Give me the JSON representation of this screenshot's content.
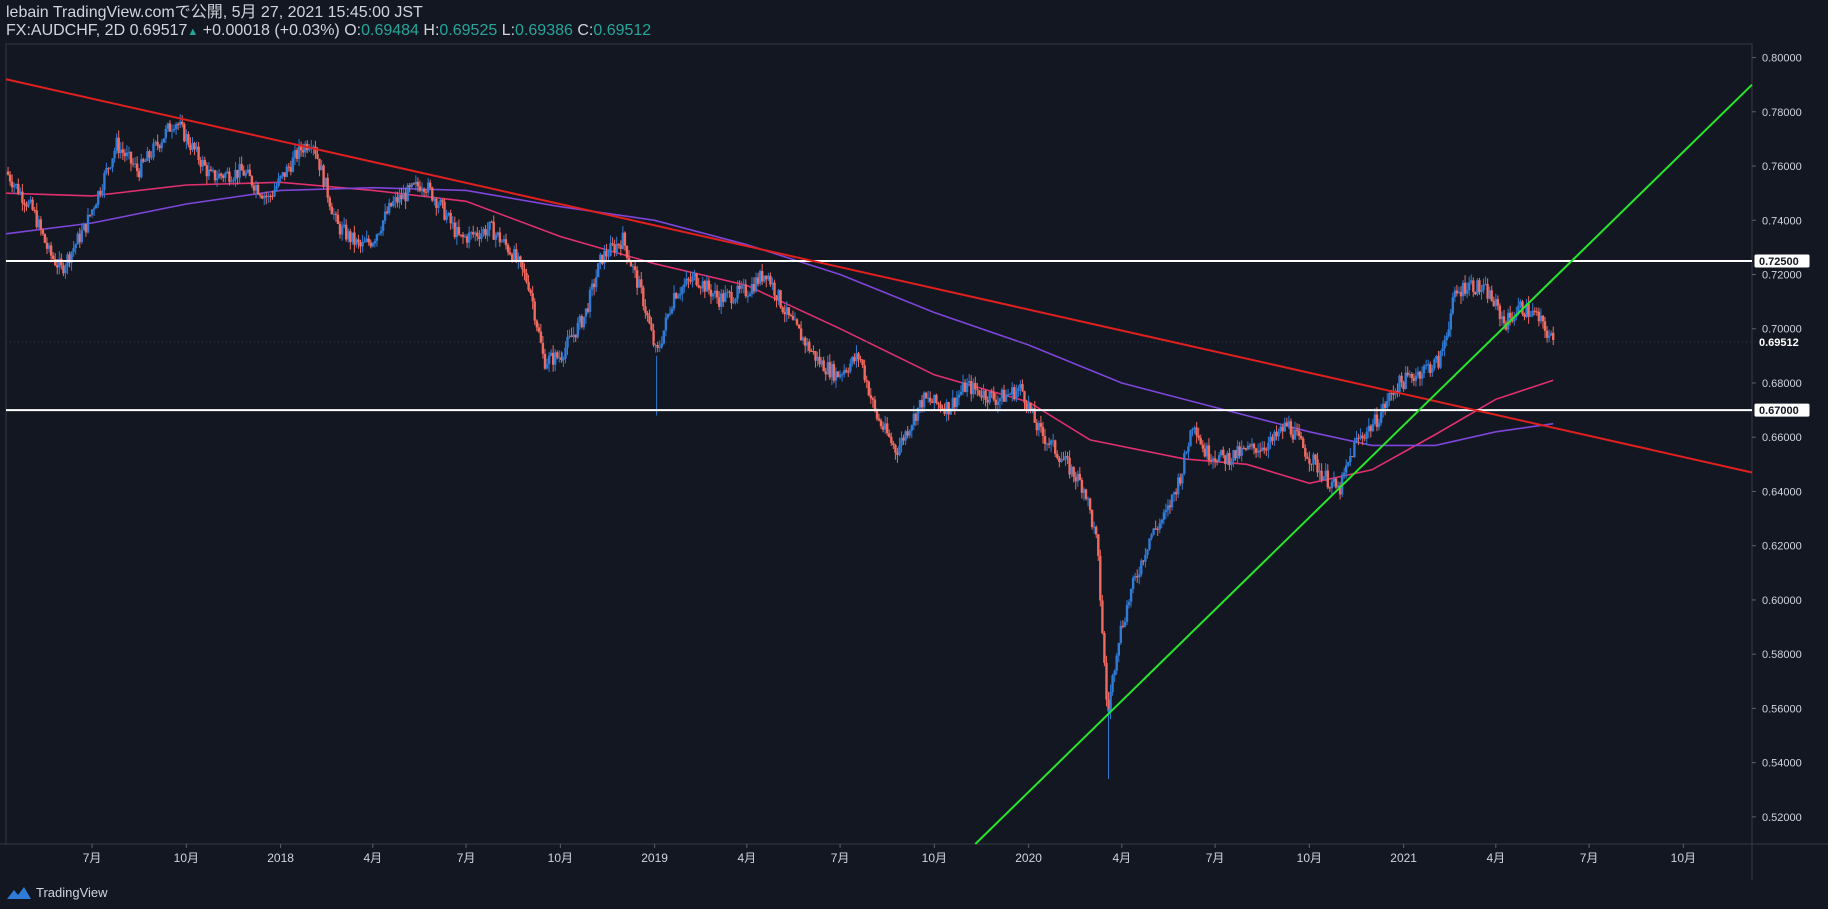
{
  "header": {
    "publisher": "lebain TradingView.comで公開, 5月 27, 2021 15:45:00 JST",
    "symbol": "FX:AUDCHF, 2D",
    "last": "0.69517",
    "change": "+0.00018 (+0.03%)",
    "o_label": "O:",
    "o_value": "0.69484",
    "h_label": "H:",
    "h_value": "0.69525",
    "l_label": "L:",
    "l_value": "0.69386",
    "c_label": "C:",
    "c_value": "0.69512"
  },
  "footer": {
    "brand": "TradingView",
    "logo_icon": "tradingview-logo-icon"
  },
  "colors": {
    "background": "#131722",
    "up": "#2f7bd6",
    "down": "#ef6a5f",
    "trend_down": "#e0201f",
    "trend_up": "#27e52b",
    "ma_fast": "#e0306e",
    "ma_slow": "#7d45d8",
    "level": "#ffffff",
    "text": "#d1d4dc",
    "value": "#26a69a"
  },
  "chart_data": {
    "type": "candlestick",
    "ylim": [
      0.51,
      0.805
    ],
    "yticks": [
      "0.80000",
      "0.78000",
      "0.76000",
      "0.74000",
      "0.72000",
      "0.70000",
      "0.68000",
      "0.66000",
      "0.64000",
      "0.62000",
      "0.60000",
      "0.58000",
      "0.56000",
      "0.54000",
      "0.52000"
    ],
    "xlim": [
      "2017-04-08",
      "2021-12-07"
    ],
    "xticks": [
      {
        "label": "7月",
        "date": "2017-07-01"
      },
      {
        "label": "10月",
        "date": "2017-10-01"
      },
      {
        "label": "2018",
        "date": "2018-01-01"
      },
      {
        "label": "4月",
        "date": "2018-04-01"
      },
      {
        "label": "7月",
        "date": "2018-07-01"
      },
      {
        "label": "10月",
        "date": "2018-10-01"
      },
      {
        "label": "2019",
        "date": "2019-01-01"
      },
      {
        "label": "4月",
        "date": "2019-04-01"
      },
      {
        "label": "7月",
        "date": "2019-07-01"
      },
      {
        "label": "10月",
        "date": "2019-10-01"
      },
      {
        "label": "2020",
        "date": "2020-01-01"
      },
      {
        "label": "4月",
        "date": "2020-04-01"
      },
      {
        "label": "7月",
        "date": "2020-07-01"
      },
      {
        "label": "10月",
        "date": "2020-10-01"
      },
      {
        "label": "2021",
        "date": "2021-01-01"
      },
      {
        "label": "4月",
        "date": "2021-04-01"
      },
      {
        "label": "7月",
        "date": "2021-07-01"
      },
      {
        "label": "10月",
        "date": "2021-10-01"
      }
    ],
    "price_path": [
      [
        "2017-04-08",
        0.758
      ],
      [
        "2017-05-05",
        0.743
      ],
      [
        "2017-05-20",
        0.728
      ],
      [
        "2017-06-01",
        0.722
      ],
      [
        "2017-06-25",
        0.738
      ],
      [
        "2017-07-25",
        0.768
      ],
      [
        "2017-08-15",
        0.758
      ],
      [
        "2017-09-20",
        0.777
      ],
      [
        "2017-10-25",
        0.756
      ],
      [
        "2017-11-25",
        0.758
      ],
      [
        "2017-12-20",
        0.748
      ],
      [
        "2018-01-20",
        0.766
      ],
      [
        "2018-02-01",
        0.77
      ],
      [
        "2018-02-25",
        0.738
      ],
      [
        "2018-03-20",
        0.73
      ],
      [
        "2018-04-01",
        0.733
      ],
      [
        "2018-04-20",
        0.746
      ],
      [
        "2018-05-20",
        0.754
      ],
      [
        "2018-06-05",
        0.746
      ],
      [
        "2018-06-25",
        0.733
      ],
      [
        "2018-07-25",
        0.737
      ],
      [
        "2018-08-15",
        0.728
      ],
      [
        "2018-09-01",
        0.716
      ],
      [
        "2018-09-15",
        0.688
      ],
      [
        "2018-10-01",
        0.69
      ],
      [
        "2018-10-25",
        0.705
      ],
      [
        "2018-11-10",
        0.726
      ],
      [
        "2018-12-01",
        0.733
      ],
      [
        "2018-12-20",
        0.712
      ],
      [
        "2019-01-03",
        0.69
      ],
      [
        "2019-01-20",
        0.713
      ],
      [
        "2019-02-10",
        0.719
      ],
      [
        "2019-03-05",
        0.711
      ],
      [
        "2019-04-01",
        0.714
      ],
      [
        "2019-04-20",
        0.721
      ],
      [
        "2019-05-10",
        0.705
      ],
      [
        "2019-06-10",
        0.688
      ],
      [
        "2019-06-28",
        0.683
      ],
      [
        "2019-07-20",
        0.69
      ],
      [
        "2019-08-05",
        0.668
      ],
      [
        "2019-08-25",
        0.655
      ],
      [
        "2019-09-20",
        0.674
      ],
      [
        "2019-10-15",
        0.671
      ],
      [
        "2019-11-01",
        0.679
      ],
      [
        "2019-12-01",
        0.674
      ],
      [
        "2019-12-25",
        0.678
      ],
      [
        "2020-01-10",
        0.663
      ],
      [
        "2020-02-01",
        0.653
      ],
      [
        "2020-02-25",
        0.641
      ],
      [
        "2020-03-08",
        0.62
      ],
      [
        "2020-03-18",
        0.557
      ],
      [
        "2020-03-28",
        0.585
      ],
      [
        "2020-04-10",
        0.603
      ],
      [
        "2020-04-28",
        0.623
      ],
      [
        "2020-05-15",
        0.632
      ],
      [
        "2020-05-30",
        0.648
      ],
      [
        "2020-06-10",
        0.667
      ],
      [
        "2020-06-20",
        0.655
      ],
      [
        "2020-07-10",
        0.652
      ],
      [
        "2020-08-01",
        0.655
      ],
      [
        "2020-08-25",
        0.658
      ],
      [
        "2020-09-10",
        0.665
      ],
      [
        "2020-09-25",
        0.656
      ],
      [
        "2020-10-15",
        0.646
      ],
      [
        "2020-10-30",
        0.64
      ],
      [
        "2020-11-15",
        0.658
      ],
      [
        "2020-12-05",
        0.666
      ],
      [
        "2020-12-25",
        0.679
      ],
      [
        "2021-01-20",
        0.685
      ],
      [
        "2021-02-05",
        0.688
      ],
      [
        "2021-02-20",
        0.712
      ],
      [
        "2021-03-05",
        0.717
      ],
      [
        "2021-03-25",
        0.713
      ],
      [
        "2021-04-10",
        0.702
      ],
      [
        "2021-04-25",
        0.708
      ],
      [
        "2021-05-10",
        0.705
      ],
      [
        "2021-05-27",
        0.6951
      ]
    ],
    "spikes": [
      {
        "date": "2019-01-03",
        "low": 0.668
      },
      {
        "date": "2020-03-19",
        "low": 0.534
      },
      {
        "date": "2018-10-03",
        "low": 0.688
      }
    ],
    "horizontal_levels": [
      {
        "value": 0.725,
        "label": "0.72500"
      },
      {
        "value": 0.67,
        "label": "0.67000"
      }
    ],
    "current_price": {
      "value": 0.69512,
      "label": "0.69512"
    },
    "trendlines": [
      {
        "name": "resistance",
        "color": "#e0201f",
        "points": [
          [
            "2017-04-08",
            0.792
          ],
          [
            "2021-12-07",
            0.647
          ]
        ]
      },
      {
        "name": "support",
        "color": "#27e52b",
        "points": [
          [
            "2019-11-10",
            0.51
          ],
          [
            "2021-12-07",
            0.79
          ]
        ]
      }
    ],
    "moving_averages": [
      {
        "color": "#e0306e",
        "points": [
          [
            "2017-04-08",
            0.75
          ],
          [
            "2017-07-01",
            0.749
          ],
          [
            "2017-10-01",
            0.753
          ],
          [
            "2018-01-01",
            0.754
          ],
          [
            "2018-04-01",
            0.751
          ],
          [
            "2018-07-01",
            0.747
          ],
          [
            "2018-10-01",
            0.734
          ],
          [
            "2019-01-01",
            0.724
          ],
          [
            "2019-04-01",
            0.716
          ],
          [
            "2019-07-01",
            0.7
          ],
          [
            "2019-10-01",
            0.683
          ],
          [
            "2020-01-01",
            0.673
          ],
          [
            "2020-03-01",
            0.659
          ],
          [
            "2020-06-01",
            0.652
          ],
          [
            "2020-08-01",
            0.65
          ],
          [
            "2020-10-01",
            0.643
          ],
          [
            "2020-12-01",
            0.648
          ],
          [
            "2021-02-01",
            0.661
          ],
          [
            "2021-04-01",
            0.674
          ],
          [
            "2021-05-27",
            0.681
          ]
        ]
      },
      {
        "color": "#7d45d8",
        "points": [
          [
            "2017-04-08",
            0.735
          ],
          [
            "2017-07-01",
            0.739
          ],
          [
            "2017-10-01",
            0.746
          ],
          [
            "2018-01-01",
            0.751
          ],
          [
            "2018-04-01",
            0.752
          ],
          [
            "2018-07-01",
            0.751
          ],
          [
            "2018-10-01",
            0.745
          ],
          [
            "2019-01-01",
            0.74
          ],
          [
            "2019-04-01",
            0.731
          ],
          [
            "2019-07-01",
            0.72
          ],
          [
            "2019-10-01",
            0.706
          ],
          [
            "2020-01-01",
            0.694
          ],
          [
            "2020-04-01",
            0.68
          ],
          [
            "2020-07-01",
            0.671
          ],
          [
            "2020-10-01",
            0.662
          ],
          [
            "2020-12-01",
            0.657
          ],
          [
            "2021-02-01",
            0.657
          ],
          [
            "2021-04-01",
            0.662
          ],
          [
            "2021-05-27",
            0.665
          ]
        ]
      }
    ]
  }
}
